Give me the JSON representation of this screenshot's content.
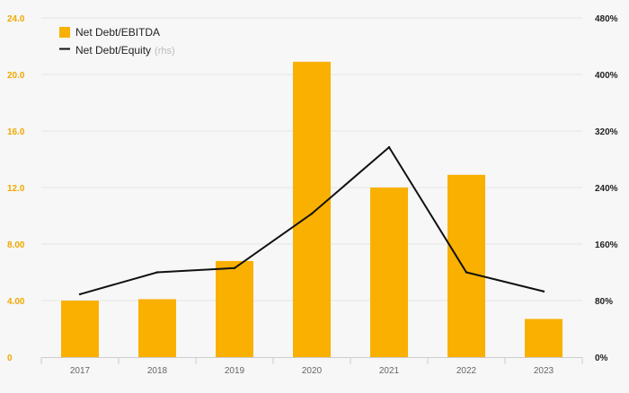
{
  "chart_data": {
    "type": "bar",
    "categories": [
      "2017",
      "2018",
      "2019",
      "2020",
      "2021",
      "2022",
      "2023"
    ],
    "series": [
      {
        "name": "Net Debt/EBITDA",
        "type": "bar",
        "axis": "left",
        "values": [
          4.0,
          4.1,
          6.8,
          20.9,
          12.0,
          12.9,
          2.7
        ]
      },
      {
        "name": "Net Debt/Equity",
        "name_suffix": "(rhs)",
        "type": "line",
        "axis": "right",
        "values": [
          89,
          120,
          126,
          203,
          297,
          120,
          93
        ]
      }
    ],
    "y_left": {
      "ylim": [
        0,
        24
      ],
      "ticks": [
        0,
        4,
        8,
        12,
        16,
        20,
        24
      ],
      "tick_labels": [
        "0",
        "4.00",
        "8.00",
        "12.0",
        "16.0",
        "20.0",
        "24.0"
      ]
    },
    "y_right": {
      "ylim": [
        0,
        480
      ],
      "ticks": [
        0,
        80,
        160,
        240,
        320,
        400,
        480
      ],
      "tick_labels": [
        "0%",
        "80%",
        "160%",
        "240%",
        "320%",
        "400%",
        "480%"
      ]
    },
    "grid": true,
    "legend_position": "top-left",
    "colors": {
      "bar": "#f9b000",
      "line": "#111111",
      "left_axis_text": "#f0a800",
      "right_axis_text": "#222222",
      "grid": "#e4e4e4",
      "category_text": "#666666",
      "muted_text": "#bbbbbb"
    }
  }
}
